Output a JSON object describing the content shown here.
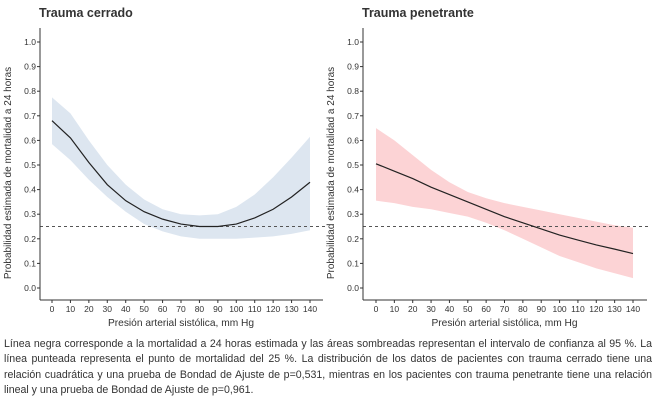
{
  "chart_data": [
    {
      "type": "line",
      "title": "Trauma cerrado",
      "xlabel": "Presión arterial sistólica, mm Hg",
      "ylabel": "Probabilidad estimada de mortalidad a 24 horas",
      "xlim": [
        0,
        140
      ],
      "ylim": [
        0,
        1.0
      ],
      "x_ticks": [
        "0",
        "10",
        "20",
        "30",
        "40",
        "50",
        "60",
        "70",
        "80",
        "90",
        "100",
        "110",
        "120",
        "130",
        "140"
      ],
      "y_ticks": [
        "0.0",
        "0.1",
        "0.2",
        "0.3",
        "0.4",
        "0.5",
        "0.6",
        "0.7",
        "0.8",
        "0.9",
        "1.0"
      ],
      "grid": false,
      "x": [
        0,
        10,
        20,
        30,
        40,
        50,
        60,
        70,
        80,
        90,
        100,
        110,
        120,
        130,
        140
      ],
      "estimate": [
        0.68,
        0.61,
        0.51,
        0.42,
        0.355,
        0.31,
        0.28,
        0.26,
        0.25,
        0.25,
        0.26,
        0.285,
        0.32,
        0.37,
        0.43
      ],
      "ci_lower": [
        0.585,
        0.52,
        0.44,
        0.37,
        0.31,
        0.26,
        0.23,
        0.21,
        0.2,
        0.2,
        0.2,
        0.205,
        0.21,
        0.22,
        0.235
      ],
      "ci_upper": [
        0.775,
        0.71,
        0.6,
        0.5,
        0.42,
        0.36,
        0.32,
        0.3,
        0.295,
        0.3,
        0.33,
        0.38,
        0.45,
        0.53,
        0.615
      ],
      "reference_line": 0.25,
      "band_color": "#dde6f0",
      "line_color": "#222222"
    },
    {
      "type": "line",
      "title": "Trauma penetrante",
      "xlabel": "Presión arterial sistólica, mm Hg",
      "ylabel": "Probabilidad estimada de mortalidad a 24 horas",
      "xlim": [
        0,
        140
      ],
      "ylim": [
        0,
        1.0
      ],
      "x_ticks": [
        "0",
        "10",
        "20",
        "30",
        "40",
        "50",
        "60",
        "70",
        "80",
        "90",
        "100",
        "110",
        "120",
        "130",
        "140"
      ],
      "y_ticks": [
        "0.0",
        "0.1",
        "0.2",
        "0.3",
        "0.4",
        "0.5",
        "0.6",
        "0.7",
        "0.8",
        "0.9",
        "1.0"
      ],
      "grid": false,
      "x": [
        0,
        10,
        20,
        30,
        40,
        50,
        60,
        70,
        80,
        90,
        100,
        110,
        120,
        130,
        140
      ],
      "estimate": [
        0.505,
        0.475,
        0.445,
        0.41,
        0.38,
        0.35,
        0.32,
        0.29,
        0.265,
        0.24,
        0.215,
        0.195,
        0.175,
        0.158,
        0.14
      ],
      "ci_lower": [
        0.355,
        0.345,
        0.33,
        0.32,
        0.305,
        0.29,
        0.265,
        0.235,
        0.2,
        0.165,
        0.13,
        0.105,
        0.08,
        0.06,
        0.04
      ],
      "ci_upper": [
        0.65,
        0.6,
        0.54,
        0.48,
        0.43,
        0.39,
        0.365,
        0.345,
        0.33,
        0.315,
        0.3,
        0.285,
        0.27,
        0.255,
        0.245
      ],
      "reference_line": 0.25,
      "band_color": "#fcd3d5",
      "line_color": "#222222"
    }
  ],
  "caption": "Línea negra corresponde a la mortalidad a 24 horas estimada y las áreas sombreadas representan el intervalo de confianza al 95 %. La línea punteada representa el punto de mortalidad del 25 %. La distribución de los datos de pacientes con trauma cerrado tiene una relación cuadrática y una prueba de Bondad de Ajuste de p=0,531, mientras en los pacientes con trauma penetrante tiene una relación lineal y una prueba de Bondad de Ajuste de p=0,961."
}
